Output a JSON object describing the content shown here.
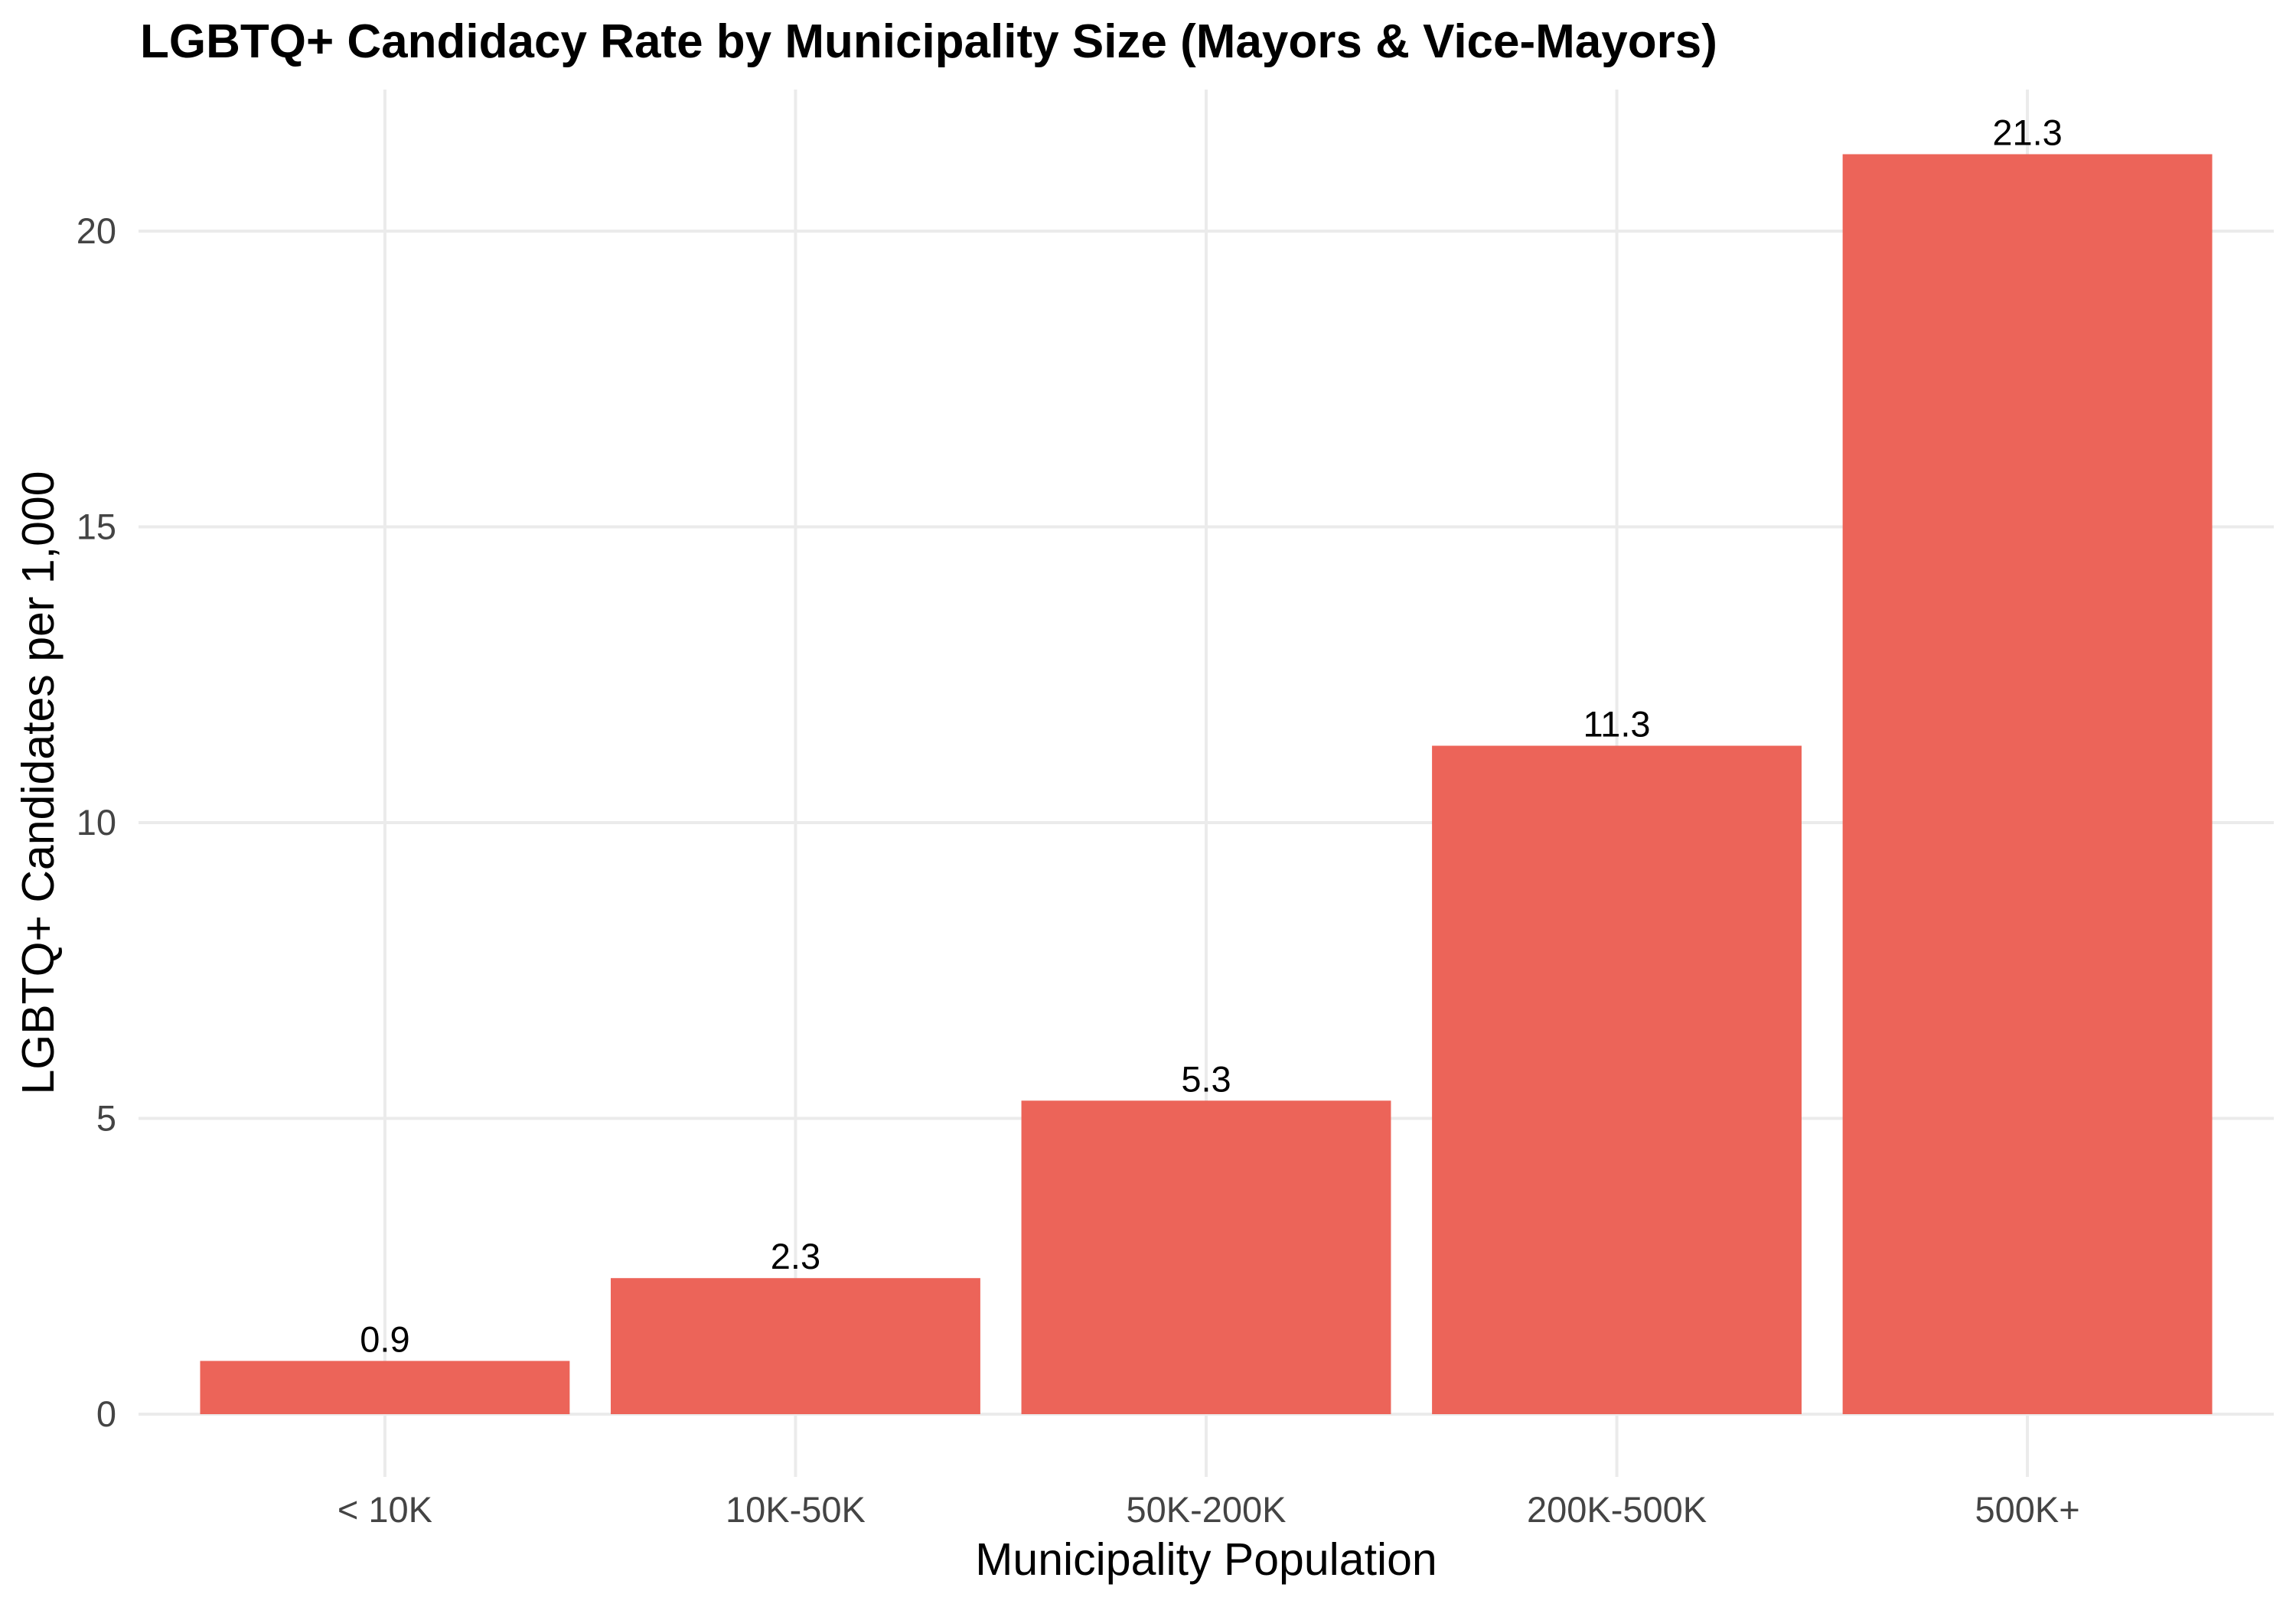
{
  "chart_data": {
    "type": "bar",
    "title": "LGBTQ+ Candidacy Rate by Municipality Size (Mayors & Vice-Mayors)",
    "xlabel": "Municipality Population",
    "ylabel": "LGBTQ+ Candidates per 1,000",
    "categories": [
      "< 10K",
      "10K-50K",
      "50K-200K",
      "200K-500K",
      "500K+"
    ],
    "values": [
      0.9,
      2.3,
      5.3,
      11.3,
      21.3
    ],
    "value_labels": [
      "0.9",
      "2.3",
      "5.3",
      "11.3",
      "21.3"
    ],
    "yticks": [
      0,
      5,
      10,
      15,
      20
    ],
    "ytick_labels": [
      "0",
      "5",
      "10",
      "15",
      "20"
    ],
    "ylim": [
      -1.07,
      22.37
    ],
    "grid": "major-only",
    "legend": "none",
    "colors": {
      "bar_fill": "#EC6459",
      "gridline": "#EBEBEB",
      "tick_text": "#444444",
      "title_text": "#000000",
      "background": "#FFFFFF"
    }
  }
}
